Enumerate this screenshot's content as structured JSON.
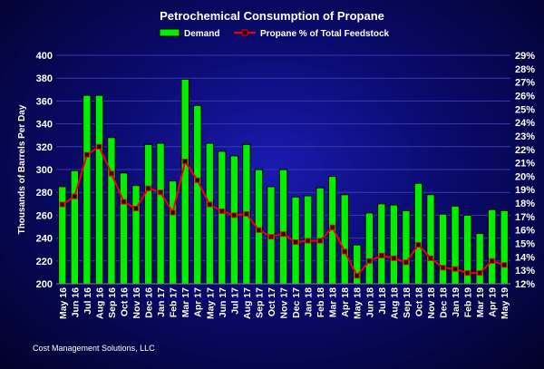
{
  "chart_data": {
    "type": "bar+line",
    "title": "Petrochemical Consumption of Propane",
    "ylabel": "Thousands of Barrels Per Day",
    "ylim": [
      200,
      400
    ],
    "y_ticks": [
      200,
      220,
      240,
      260,
      280,
      300,
      320,
      340,
      360,
      380,
      400
    ],
    "y2lim": [
      12,
      29
    ],
    "y2_ticks": [
      "12%",
      "13%",
      "14%",
      "15%",
      "16%",
      "17%",
      "18%",
      "19%",
      "20%",
      "21%",
      "22%",
      "23%",
      "24%",
      "25%",
      "26%",
      "27%",
      "28%",
      "29%"
    ],
    "categories": [
      "May 16",
      "Jun 16",
      "Jul 16",
      "Aug 16",
      "Sep 16",
      "Oct 16",
      "Nov 16",
      "Dec 16",
      "Jan 17",
      "Feb 17",
      "Mar 17",
      "Apr 17",
      "May 17",
      "Jun 17",
      "Jul 17",
      "Aug 17",
      "Sep 17",
      "Oct 17",
      "Nov 17",
      "Dec 17",
      "Jan 18",
      "Feb 18",
      "Mar 18",
      "Apr 18",
      "May 18",
      "Jun 18",
      "Jul 18",
      "Aug 18",
      "Sep 18",
      "Oct 18",
      "Nov 18",
      "Dec 18",
      "Jan 19",
      "Feb 19",
      "Mar 19",
      "Apr 19",
      "May 19"
    ],
    "series": [
      {
        "name": "Demand",
        "type": "bar",
        "axis": "left",
        "color": "#00ee00",
        "values": [
          285,
          299,
          365,
          365,
          328,
          297,
          286,
          322,
          323,
          290,
          379,
          356,
          323,
          316,
          312,
          322,
          300,
          285,
          300,
          276,
          277,
          284,
          294,
          278,
          234,
          262,
          270,
          269,
          264,
          288,
          278,
          261,
          268,
          260,
          244,
          265,
          264
        ]
      },
      {
        "name": "Propane % of Total Feedstock",
        "type": "line",
        "axis": "right",
        "color": "#ee0000",
        "values": [
          17.9,
          18.5,
          21.6,
          22.2,
          20.2,
          18.1,
          17.6,
          19.1,
          18.8,
          17.3,
          21.1,
          19.7,
          17.9,
          17.4,
          17.1,
          17.2,
          16.0,
          15.5,
          15.7,
          15.1,
          15.2,
          15.2,
          16.2,
          14.4,
          12.6,
          13.7,
          14.1,
          13.9,
          13.6,
          14.9,
          13.9,
          13.2,
          13.1,
          12.8,
          12.8,
          13.7,
          13.4
        ]
      }
    ],
    "legend_position": "top-center"
  },
  "footer": {
    "credit": "Cost Management Solutions, LLC"
  },
  "colors": {
    "background": "#0a0a6e",
    "bar": "#00ee00",
    "line": "#ee0000",
    "text": "#ffffff"
  }
}
